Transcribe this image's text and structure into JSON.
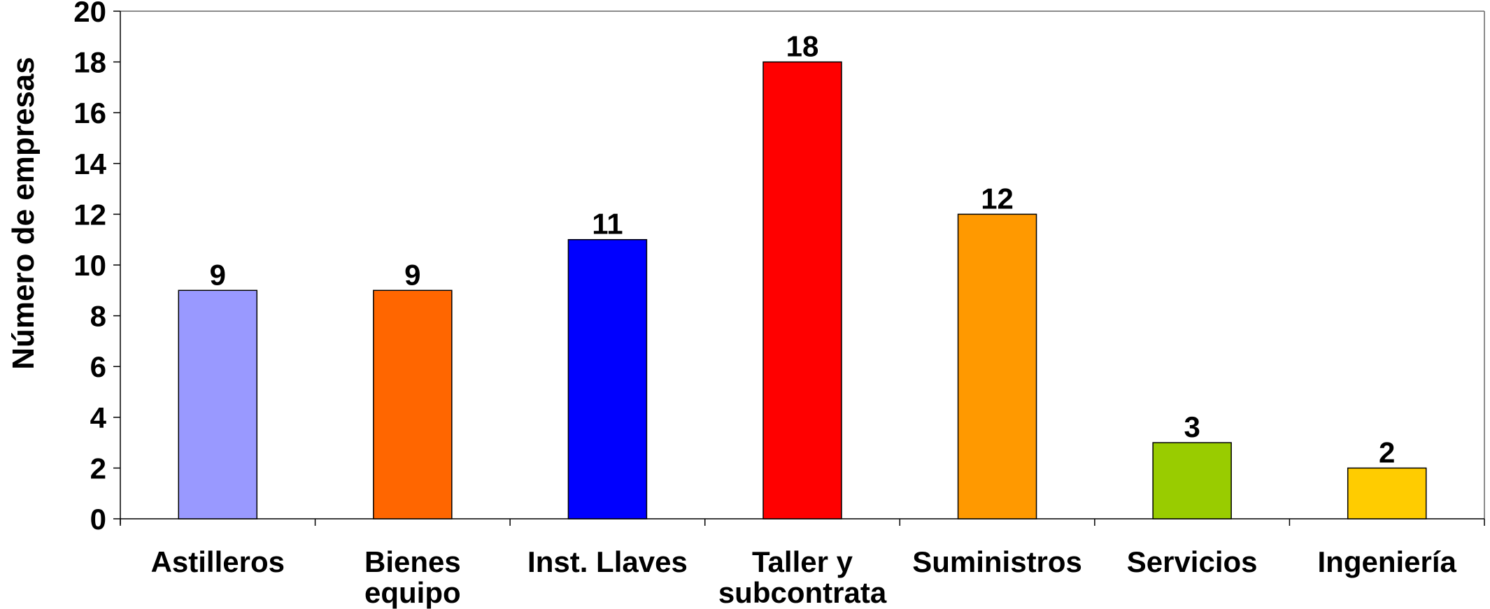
{
  "chart_data": {
    "type": "bar",
    "title": "",
    "xlabel": "",
    "ylabel": "Número de empresas",
    "ylim": [
      0,
      20
    ],
    "yticks": [
      0,
      2,
      4,
      6,
      8,
      10,
      12,
      14,
      16,
      18,
      20
    ],
    "grid": false,
    "legend": "none",
    "categories": [
      [
        "Astilleros"
      ],
      [
        "Bienes",
        "equipo"
      ],
      [
        "Inst. Llaves"
      ],
      [
        "Taller y",
        "subcontrata"
      ],
      [
        "Suministros"
      ],
      [
        "Servicios"
      ],
      [
        "Ingeniería"
      ]
    ],
    "values": [
      9,
      9,
      11,
      18,
      12,
      3,
      2
    ],
    "colors": [
      "#9999ff",
      "#ff6600",
      "#0000ff",
      "#ff0000",
      "#ff9900",
      "#99cc00",
      "#ffcc00"
    ]
  }
}
